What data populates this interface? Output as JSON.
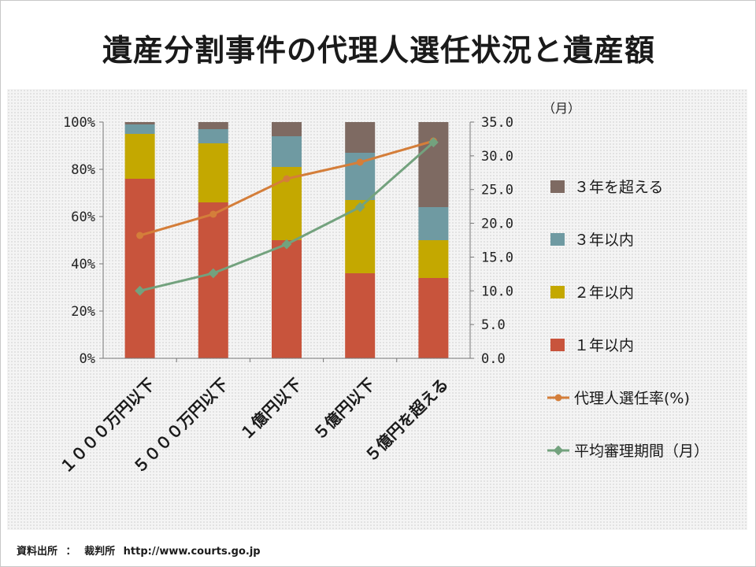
{
  "title": "遺産分割事件の代理人選任状況と遺産額",
  "source": {
    "label": "資料出所",
    "separator": "：",
    "org": "裁判所",
    "url": "http://www.courts.go.jp"
  },
  "chart_data": {
    "type": "bar",
    "stacked": true,
    "categories": [
      "１０００万円以下",
      "５０００万円以下",
      "１億円以下",
      "５億円以下",
      "５億円を超える"
    ],
    "y_left": {
      "ticks": [
        "0%",
        "20%",
        "40%",
        "60%",
        "80%",
        "100%"
      ],
      "ylim": [
        0,
        100
      ]
    },
    "y_right": {
      "label": "（月）",
      "ticks": [
        "0.0",
        "5.0",
        "10.0",
        "15.0",
        "20.0",
        "25.0",
        "30.0",
        "35.0"
      ],
      "ylim": [
        0,
        35
      ]
    },
    "grid": false,
    "legend_position": "right",
    "series": [
      {
        "name": "１年以内",
        "kind": "bar",
        "color": "#c8543c",
        "values": [
          76,
          66,
          50,
          36,
          34
        ]
      },
      {
        "name": "２年以内",
        "kind": "bar",
        "color": "#c4a800",
        "values": [
          19,
          25,
          31,
          31,
          16
        ]
      },
      {
        "name": "３年以内",
        "kind": "bar",
        "color": "#6f9aa2",
        "values": [
          4,
          6,
          13,
          20,
          14
        ]
      },
      {
        "name": "３年を超える",
        "kind": "bar",
        "color": "#7e6a62",
        "values": [
          1,
          3,
          6,
          13,
          36
        ]
      },
      {
        "name": "代理人選任率(%)",
        "kind": "line",
        "axis": "left",
        "color": "#d47e3a",
        "values": [
          52,
          61,
          76,
          83,
          92
        ]
      },
      {
        "name": "平均審理期間（月）",
        "kind": "line",
        "axis": "right",
        "color": "#73a27e",
        "values": [
          10.0,
          12.6,
          16.9,
          22.4,
          32.0
        ]
      }
    ],
    "legend_order": [
      "３年を超える",
      "３年以内",
      "２年以内",
      "１年以内",
      "代理人選任率(%)",
      "平均審理期間（月）"
    ]
  }
}
